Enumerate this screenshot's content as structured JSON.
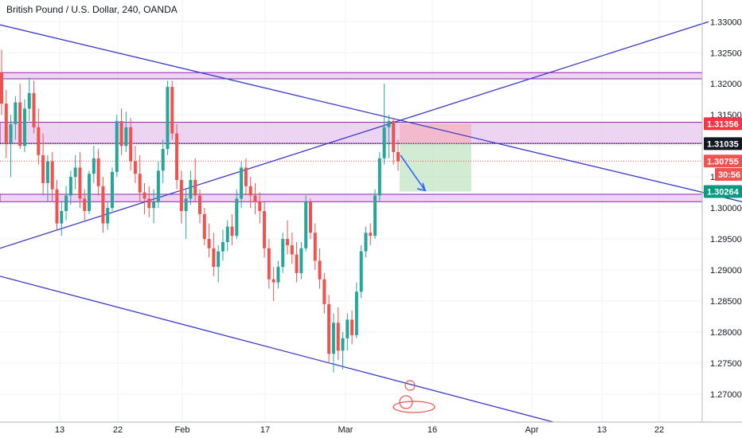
{
  "chart_data": {
    "type": "candlestick",
    "title": "British Pound / U.S. Dollar, 240, OANDA",
    "x_tick_labels": [
      "13",
      "22",
      "Feb",
      "17",
      "Mar",
      "16",
      "Apr",
      "13",
      "22"
    ],
    "y_tick_labels": [
      "1.33000",
      "1.32500",
      "1.32000",
      "1.31500",
      "1.31000",
      "1.30500",
      "1.30000",
      "1.29500",
      "1.29000",
      "1.28500",
      "1.28000",
      "1.27500",
      "1.27000"
    ],
    "ylim": [
      1.2655,
      1.3335
    ],
    "price_badges": [
      {
        "label": "1.31356",
        "value": 1.31356,
        "color": "#f23645"
      },
      {
        "label": "1.31035",
        "value": 1.31035,
        "color": "#131722"
      },
      {
        "label": "1.30755",
        "value": 1.30755,
        "color": "#ef5350"
      },
      {
        "label": "30:56",
        "value": 1.3054,
        "color": "#ef5350"
      },
      {
        "label": "1.30264",
        "value": 1.30264,
        "color": "#089981"
      }
    ],
    "zones": [
      {
        "from": 1.3208,
        "to": 1.3218
      },
      {
        "from": 1.3104,
        "to": 1.3138
      },
      {
        "from": 1.301,
        "to": 1.3022
      }
    ],
    "trade": {
      "entry": 1.31035,
      "stop": 1.31356,
      "target": 1.30264
    },
    "colors": {
      "up": "#26a69a",
      "down": "#ef5350",
      "trendline": "#3a3acb",
      "zone": "#e8c6ef",
      "zone_border": "#8e24aa"
    },
    "candles": [
      [
        1.3218,
        1.3255,
        1.315,
        1.3168
      ],
      [
        1.3168,
        1.319,
        1.308,
        1.3105
      ],
      [
        1.3105,
        1.315,
        1.305,
        1.3135
      ],
      [
        1.3135,
        1.318,
        1.311,
        1.317
      ],
      [
        1.317,
        1.32,
        1.3095,
        1.31
      ],
      [
        1.31,
        1.3175,
        1.309,
        1.316
      ],
      [
        1.316,
        1.321,
        1.314,
        1.3185
      ],
      [
        1.3185,
        1.3205,
        1.312,
        1.313
      ],
      [
        1.313,
        1.316,
        1.307,
        1.3085
      ],
      [
        1.3085,
        1.312,
        1.302,
        1.304
      ],
      [
        1.304,
        1.3085,
        1.301,
        1.3075
      ],
      [
        1.3075,
        1.309,
        1.301,
        1.303
      ],
      [
        1.303,
        1.3045,
        1.2965,
        1.2975
      ],
      [
        1.2975,
        1.301,
        1.2955,
        1.2995
      ],
      [
        1.2995,
        1.3035,
        1.298,
        1.302
      ],
      [
        1.302,
        1.306,
        1.3005,
        1.305
      ],
      [
        1.305,
        1.3085,
        1.303,
        1.3065
      ],
      [
        1.3065,
        1.309,
        1.3,
        1.3015
      ],
      [
        1.3015,
        1.303,
        1.298,
        1.2995
      ],
      [
        1.2995,
        1.306,
        1.299,
        1.3055
      ],
      [
        1.3055,
        1.31,
        1.304,
        1.308
      ],
      [
        1.308,
        1.3095,
        1.302,
        1.3035
      ],
      [
        1.3035,
        1.305,
        1.296,
        1.2975
      ],
      [
        1.2975,
        1.301,
        1.2965,
        1.3
      ],
      [
        1.3,
        1.3065,
        1.2995,
        1.3058
      ],
      [
        1.3058,
        1.315,
        1.305,
        1.314
      ],
      [
        1.314,
        1.316,
        1.3085,
        1.31
      ],
      [
        1.31,
        1.3155,
        1.309,
        1.313
      ],
      [
        1.313,
        1.3145,
        1.306,
        1.3075
      ],
      [
        1.3075,
        1.31,
        1.304,
        1.3055
      ],
      [
        1.3055,
        1.3085,
        1.301,
        1.3025
      ],
      [
        1.3025,
        1.304,
        1.299,
        1.3015
      ],
      [
        1.3015,
        1.3035,
        1.2985,
        1.3
      ],
      [
        1.3,
        1.303,
        1.2975,
        1.301
      ],
      [
        1.301,
        1.3075,
        1.3,
        1.306
      ],
      [
        1.306,
        1.311,
        1.304,
        1.3095
      ],
      [
        1.3095,
        1.3205,
        1.3085,
        1.3195
      ],
      [
        1.3195,
        1.3205,
        1.311,
        1.312
      ],
      [
        1.312,
        1.3135,
        1.303,
        1.3045
      ],
      [
        1.3045,
        1.306,
        1.2975,
        1.2995
      ],
      [
        1.2995,
        1.303,
        1.295,
        1.3015
      ],
      [
        1.3015,
        1.306,
        1.3005,
        1.3045
      ],
      [
        1.3045,
        1.308,
        1.301,
        1.302
      ],
      [
        1.302,
        1.303,
        1.2975,
        1.299
      ],
      [
        1.299,
        1.3,
        1.294,
        1.295
      ],
      [
        1.295,
        1.2975,
        1.292,
        1.2935
      ],
      [
        1.2935,
        1.296,
        1.289,
        1.2905
      ],
      [
        1.2905,
        1.294,
        1.288,
        1.293
      ],
      [
        1.293,
        1.2965,
        1.2915,
        1.2945
      ],
      [
        1.2945,
        1.298,
        1.293,
        1.297
      ],
      [
        1.297,
        1.299,
        1.294,
        1.2955
      ],
      [
        1.2955,
        1.303,
        1.295,
        1.3015
      ],
      [
        1.3015,
        1.3075,
        1.3,
        1.3065
      ],
      [
        1.3065,
        1.308,
        1.302,
        1.3035
      ],
      [
        1.3035,
        1.305,
        1.3,
        1.302
      ],
      [
        1.302,
        1.304,
        1.299,
        1.301
      ],
      [
        1.301,
        1.3025,
        1.2975,
        1.2995
      ],
      [
        1.2995,
        1.301,
        1.292,
        1.2935
      ],
      [
        1.2935,
        1.295,
        1.287,
        1.2885
      ],
      [
        1.2885,
        1.2905,
        1.285,
        1.288
      ],
      [
        1.288,
        1.2915,
        1.287,
        1.2905
      ],
      [
        1.2905,
        1.296,
        1.2895,
        1.295
      ],
      [
        1.295,
        1.298,
        1.2925,
        1.294
      ],
      [
        1.294,
        1.296,
        1.291,
        1.2925
      ],
      [
        1.2925,
        1.2945,
        1.288,
        1.2895
      ],
      [
        1.2895,
        1.2945,
        1.2885,
        1.2935
      ],
      [
        1.2935,
        1.302,
        1.293,
        1.301
      ],
      [
        1.301,
        1.3015,
        1.295,
        1.296
      ],
      [
        1.296,
        1.2975,
        1.29,
        1.2915
      ],
      [
        1.2915,
        1.2935,
        1.287,
        1.2885
      ],
      [
        1.2885,
        1.2895,
        1.283,
        1.2845
      ],
      [
        1.2845,
        1.286,
        1.275,
        1.2765
      ],
      [
        1.2765,
        1.283,
        1.2735,
        1.2815
      ],
      [
        1.2815,
        1.284,
        1.2755,
        1.277
      ],
      [
        1.277,
        1.28,
        1.274,
        1.279
      ],
      [
        1.279,
        1.283,
        1.277,
        1.282
      ],
      [
        1.282,
        1.2835,
        1.278,
        1.2795
      ],
      [
        1.2795,
        1.288,
        1.279,
        1.2865
      ],
      [
        1.2865,
        1.294,
        1.2855,
        1.293
      ],
      [
        1.293,
        1.297,
        1.292,
        1.296
      ],
      [
        1.296,
        1.2975,
        1.294,
        1.2955
      ],
      [
        1.2955,
        1.303,
        1.295,
        1.302
      ],
      [
        1.302,
        1.309,
        1.301,
        1.308
      ],
      [
        1.308,
        1.32,
        1.307,
        1.313
      ],
      [
        1.313,
        1.315,
        1.308,
        1.314
      ],
      [
        1.314,
        1.3145,
        1.307,
        1.309
      ],
      [
        1.309,
        1.311,
        1.306,
        1.3075
      ]
    ],
    "trendlines": [
      {
        "x0": 0,
        "y0": 1.3295,
        "x1": 932,
        "y1": 1.301
      },
      {
        "x0": 0,
        "y0": 1.2935,
        "x1": 890,
        "y1": 1.33
      },
      {
        "x0": 0,
        "y0": 1.289,
        "x1": 695,
        "y1": 1.2655
      }
    ]
  }
}
